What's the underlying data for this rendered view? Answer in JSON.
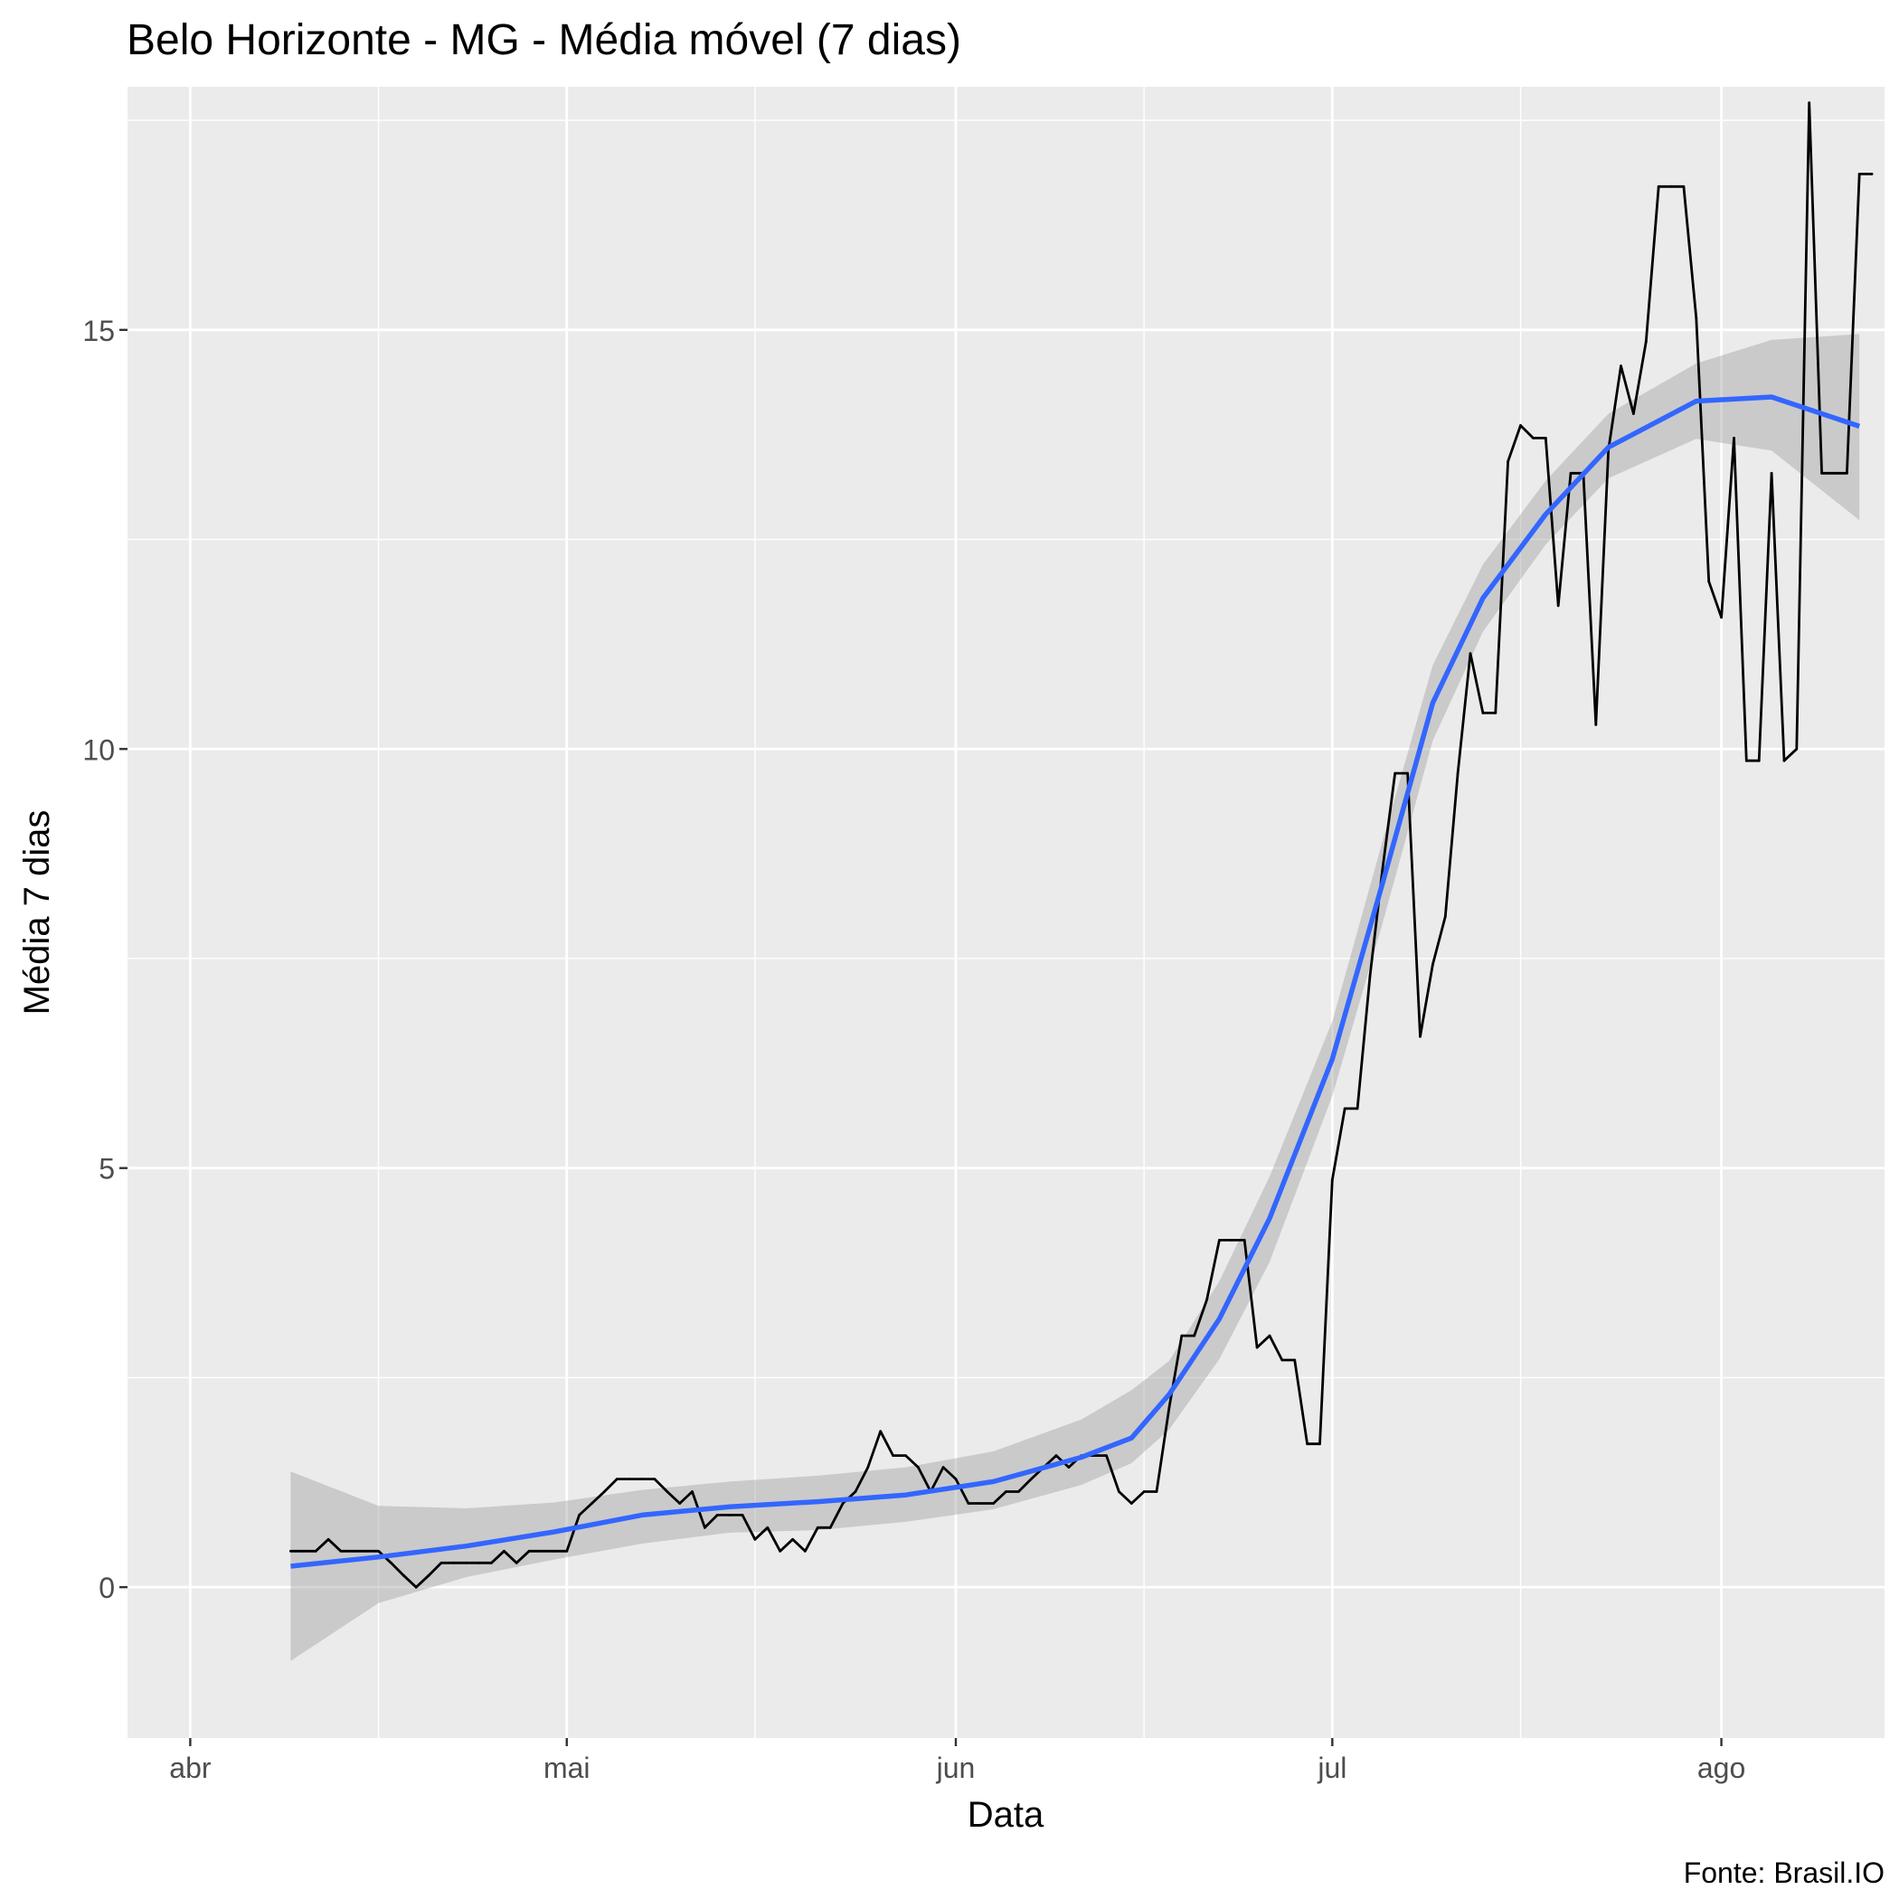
{
  "chart_data": {
    "type": "line",
    "title": "Belo Horizonte - MG - Média móvel (7 dias)",
    "xlabel": "Data",
    "ylabel": "Média 7 dias",
    "caption": "Fonte: Brasil.IO",
    "x_type": "date",
    "x_start": "2020-04-09",
    "x_end": "2020-08-12",
    "xlim": [
      "2020-03-27",
      "2020-08-14"
    ],
    "ylim": [
      -1.8,
      17.9
    ],
    "x_ticks": [
      {
        "date": "2020-04-01",
        "label": "abr"
      },
      {
        "date": "2020-05-01",
        "label": "mai"
      },
      {
        "date": "2020-06-01",
        "label": "jun"
      },
      {
        "date": "2020-07-01",
        "label": "jul"
      },
      {
        "date": "2020-08-01",
        "label": "ago"
      }
    ],
    "x_minor_ticks": [
      "2020-04-16",
      "2020-05-16",
      "2020-06-16",
      "2020-07-16",
      "2020-08-16"
    ],
    "y_ticks": [
      0,
      5,
      10,
      15
    ],
    "y_minor_ticks": [
      -2.5,
      2.5,
      7.5,
      12.5,
      17.5
    ],
    "grid": true,
    "series": [
      {
        "type": "line",
        "color": "#000000",
        "values": [
          0.43,
          0.43,
          0.43,
          0.57,
          0.43,
          0.43,
          0.43,
          0.43,
          0.29,
          0.14,
          0.0,
          0.14,
          0.29,
          0.29,
          0.29,
          0.29,
          0.29,
          0.43,
          0.29,
          0.43,
          0.43,
          0.43,
          0.43,
          0.86,
          1.0,
          1.14,
          1.29,
          1.29,
          1.29,
          1.29,
          1.14,
          1.0,
          1.14,
          0.71,
          0.86,
          0.86,
          0.86,
          0.57,
          0.71,
          0.43,
          0.57,
          0.43,
          0.71,
          0.71,
          1.0,
          1.14,
          1.43,
          1.86,
          1.57,
          1.57,
          1.43,
          1.14,
          1.43,
          1.29,
          1.0,
          1.0,
          1.0,
          1.14,
          1.14,
          1.29,
          1.43,
          1.57,
          1.43,
          1.57,
          1.57,
          1.57,
          1.14,
          1.0,
          1.14,
          1.14,
          2.14,
          3.0,
          3.0,
          3.43,
          4.14,
          4.14,
          4.14,
          2.86,
          3.0,
          2.71,
          2.71,
          1.71,
          1.71,
          4.86,
          5.71,
          5.71,
          7.29,
          8.57,
          9.71,
          9.71,
          6.57,
          7.43,
          8.0,
          9.71,
          11.14,
          10.43,
          10.43,
          13.43,
          13.86,
          13.71,
          13.71,
          11.71,
          13.29,
          13.29,
          10.29,
          13.57,
          14.57,
          14.0,
          14.86,
          16.71,
          16.71,
          16.71,
          15.14,
          12.0,
          11.57,
          13.71,
          9.86,
          9.86,
          13.29,
          9.86,
          10.0,
          17.71,
          13.29,
          13.29,
          13.29,
          16.86,
          16.86
        ]
      },
      {
        "type": "smooth",
        "color": "#3366FF",
        "ribbon_color": "#999999",
        "points": [
          {
            "date": "2020-04-09",
            "y": 0.25,
            "lo": -0.88,
            "hi": 1.38
          },
          {
            "date": "2020-04-16",
            "y": 0.36,
            "lo": -0.19,
            "hi": 0.97
          },
          {
            "date": "2020-04-23",
            "y": 0.49,
            "lo": 0.12,
            "hi": 0.94
          },
          {
            "date": "2020-04-30",
            "y": 0.66,
            "lo": 0.33,
            "hi": 1.01
          },
          {
            "date": "2020-05-07",
            "y": 0.86,
            "lo": 0.52,
            "hi": 1.16
          },
          {
            "date": "2020-05-14",
            "y": 0.96,
            "lo": 0.65,
            "hi": 1.26
          },
          {
            "date": "2020-05-21",
            "y": 1.02,
            "lo": 0.68,
            "hi": 1.33
          },
          {
            "date": "2020-05-28",
            "y": 1.1,
            "lo": 0.78,
            "hi": 1.43
          },
          {
            "date": "2020-06-04",
            "y": 1.26,
            "lo": 0.93,
            "hi": 1.62
          },
          {
            "date": "2020-06-11",
            "y": 1.55,
            "lo": 1.22,
            "hi": 2.0
          },
          {
            "date": "2020-06-15",
            "y": 1.78,
            "lo": 1.48,
            "hi": 2.35
          },
          {
            "date": "2020-06-18",
            "y": 2.3,
            "lo": 1.88,
            "hi": 2.7
          },
          {
            "date": "2020-06-22",
            "y": 3.2,
            "lo": 2.72,
            "hi": 3.65
          },
          {
            "date": "2020-06-26",
            "y": 4.4,
            "lo": 3.88,
            "hi": 4.9
          },
          {
            "date": "2020-07-01",
            "y": 6.3,
            "lo": 5.86,
            "hi": 6.75
          },
          {
            "date": "2020-07-05",
            "y": 8.4,
            "lo": 7.92,
            "hi": 8.9
          },
          {
            "date": "2020-07-09",
            "y": 10.55,
            "lo": 10.1,
            "hi": 11.0
          },
          {
            "date": "2020-07-13",
            "y": 11.8,
            "lo": 11.4,
            "hi": 12.2
          },
          {
            "date": "2020-07-18",
            "y": 12.8,
            "lo": 12.44,
            "hi": 13.2
          },
          {
            "date": "2020-07-23",
            "y": 13.6,
            "lo": 13.23,
            "hi": 14.0
          },
          {
            "date": "2020-07-30",
            "y": 14.15,
            "lo": 13.7,
            "hi": 14.6
          },
          {
            "date": "2020-08-05",
            "y": 14.2,
            "lo": 13.56,
            "hi": 14.88
          },
          {
            "date": "2020-08-12",
            "y": 13.85,
            "lo": 12.73,
            "hi": 14.95
          }
        ]
      }
    ]
  }
}
